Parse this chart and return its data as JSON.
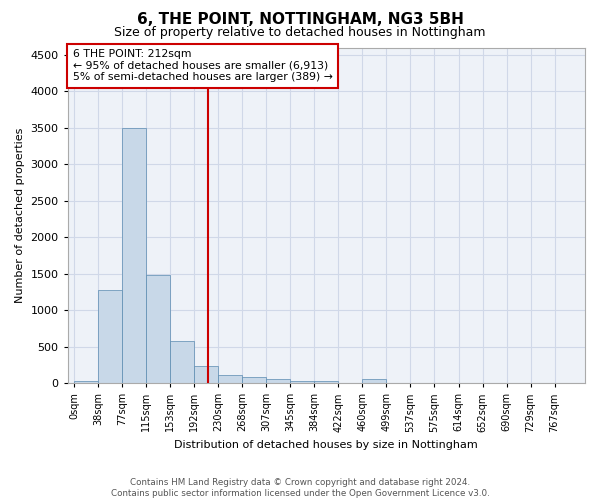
{
  "title": "6, THE POINT, NOTTINGHAM, NG3 5BH",
  "subtitle": "Size of property relative to detached houses in Nottingham",
  "xlabel": "Distribution of detached houses by size in Nottingham",
  "ylabel": "Number of detached properties",
  "bin_labels": [
    "0sqm",
    "38sqm",
    "77sqm",
    "115sqm",
    "153sqm",
    "192sqm",
    "230sqm",
    "268sqm",
    "307sqm",
    "345sqm",
    "384sqm",
    "422sqm",
    "460sqm",
    "499sqm",
    "537sqm",
    "575sqm",
    "614sqm",
    "652sqm",
    "690sqm",
    "729sqm",
    "767sqm"
  ],
  "bar_heights": [
    30,
    1270,
    3500,
    1480,
    580,
    240,
    115,
    85,
    55,
    30,
    30,
    0,
    50,
    0,
    0,
    0,
    0,
    0,
    0,
    0,
    0
  ],
  "bar_color": "#c8d8e8",
  "bar_edge_color": "#5a8ab0",
  "vline_x": 212,
  "vline_color": "#cc0000",
  "annotation_text": "6 THE POINT: 212sqm\n← 95% of detached houses are smaller (6,913)\n5% of semi-detached houses are larger (389) →",
  "annotation_box_color": "#ffffff",
  "annotation_box_edge_color": "#cc0000",
  "ylim": [
    0,
    4600
  ],
  "yticks": [
    0,
    500,
    1000,
    1500,
    2000,
    2500,
    3000,
    3500,
    4000,
    4500
  ],
  "grid_color": "#d0d8e8",
  "background_color": "#eef2f8",
  "footer_text": "Contains HM Land Registry data © Crown copyright and database right 2024.\nContains public sector information licensed under the Open Government Licence v3.0.",
  "bin_width": 38
}
